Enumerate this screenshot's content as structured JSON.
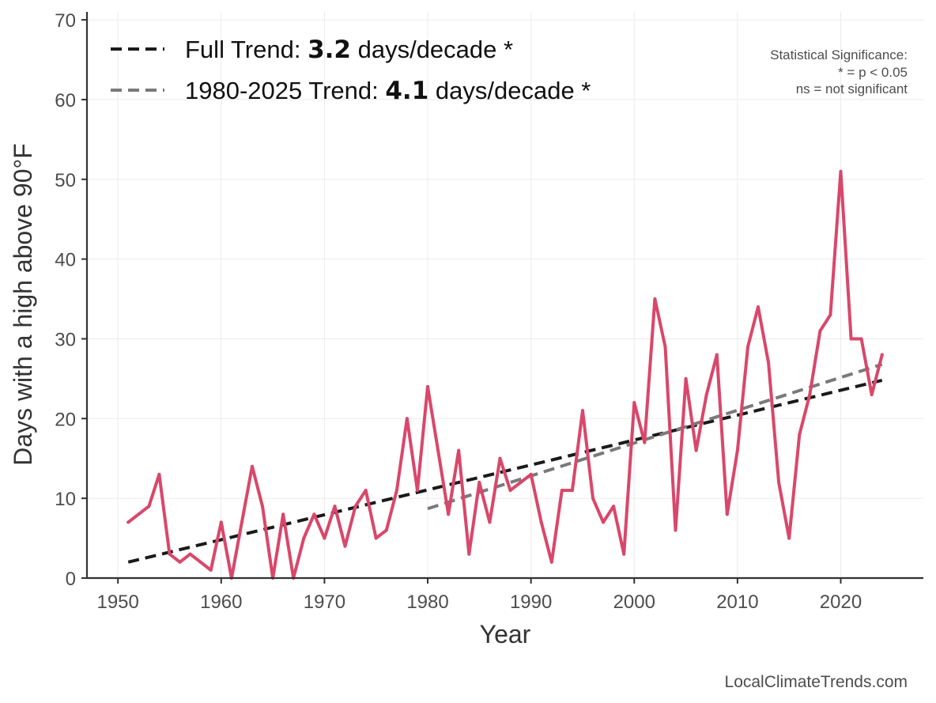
{
  "chart_data": {
    "type": "line",
    "xlabel": "Year",
    "ylabel": "Days with a high above 90°F",
    "xlim": [
      1947,
      2028
    ],
    "ylim": [
      0,
      71
    ],
    "xticks": [
      1950,
      1960,
      1970,
      1980,
      1990,
      2000,
      2010,
      2020
    ],
    "yticks": [
      0,
      10,
      20,
      30,
      40,
      50,
      60,
      70
    ],
    "grid": true,
    "series": [
      {
        "name": "Days above 90°F",
        "color": "#d9476b",
        "x": [
          1951,
          1952,
          1953,
          1954,
          1955,
          1956,
          1957,
          1958,
          1959,
          1960,
          1961,
          1962,
          1963,
          1964,
          1965,
          1966,
          1967,
          1968,
          1969,
          1970,
          1971,
          1972,
          1973,
          1974,
          1975,
          1976,
          1977,
          1978,
          1979,
          1980,
          1981,
          1982,
          1983,
          1984,
          1985,
          1986,
          1987,
          1988,
          1989,
          1990,
          1991,
          1992,
          1993,
          1994,
          1995,
          1996,
          1997,
          1998,
          1999,
          2000,
          2001,
          2002,
          2003,
          2004,
          2005,
          2006,
          2007,
          2008,
          2009,
          2010,
          2011,
          2012,
          2013,
          2014,
          2015,
          2016,
          2017,
          2018,
          2019,
          2020,
          2021,
          2022,
          2023,
          2024
        ],
        "values": [
          7,
          8,
          9,
          13,
          3,
          2,
          3,
          2,
          1,
          7,
          0,
          7,
          14,
          9,
          0,
          8,
          0,
          5,
          8,
          5,
          9,
          4,
          9,
          11,
          5,
          6,
          11,
          20,
          11,
          24,
          16,
          8,
          16,
          3,
          12,
          7,
          15,
          11,
          12,
          13,
          7,
          2,
          11,
          11,
          21,
          10,
          7,
          9,
          3,
          22,
          17,
          35,
          29,
          6,
          25,
          16,
          23,
          28,
          8,
          16,
          29,
          34,
          27,
          12,
          5,
          18,
          23,
          31,
          33,
          51,
          30,
          30,
          23,
          28
        ]
      }
    ],
    "trends": [
      {
        "name": "Full Trend",
        "style": "dashed",
        "color": "#1a1a1a",
        "x_range": [
          1951,
          2024
        ],
        "y_range": [
          2.0,
          24.8
        ],
        "label_prefix": "Full Trend: ",
        "label_value": "3.2",
        "label_suffix": " days/decade *"
      },
      {
        "name": "1980-2025 Trend",
        "style": "dashed",
        "color": "#7a7a7a",
        "x_range": [
          1980,
          2024
        ],
        "y_range": [
          8.7,
          26.8
        ],
        "label_prefix": "1980-2025 Trend: ",
        "label_value": "4.1",
        "label_suffix": " days/decade *"
      }
    ],
    "legend_position": "top-left"
  },
  "significance_note": {
    "line1": "Statistical Significance:",
    "line2": "* = p < 0.05",
    "line3": "ns = not significant"
  },
  "source": "LocalClimateTrends.com"
}
